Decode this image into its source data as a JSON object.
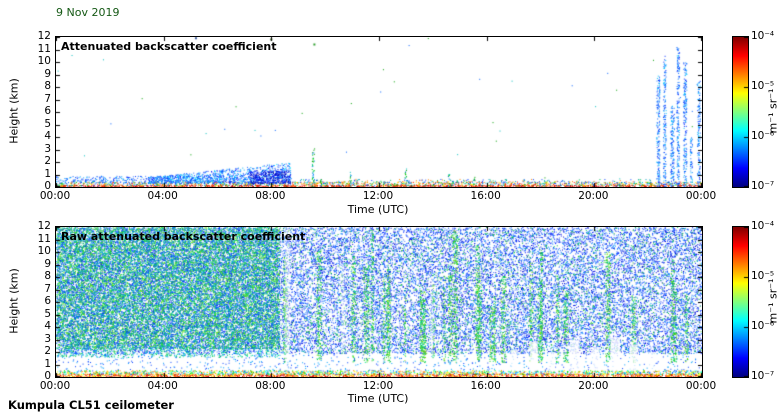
{
  "page": {
    "date_label": "9 Nov 2019",
    "date_color": "#155915",
    "footer_label": "Kumpula CL51 ceilometer",
    "background": "#ffffff"
  },
  "colorbar": {
    "ticks": [
      "10⁻⁴",
      "10⁻⁵",
      "10⁻⁶",
      "10⁻⁷"
    ],
    "unit_label": "m⁻¹ sr⁻¹",
    "colormap": "jet",
    "range": [
      "10⁻⁷",
      "10⁻⁴"
    ],
    "gradient_bottom_to_top": [
      [
        0.0,
        "#00007f"
      ],
      [
        0.125,
        "#0000ff"
      ],
      [
        0.25,
        "#007fff"
      ],
      [
        0.375,
        "#00ffff"
      ],
      [
        0.5,
        "#7fff7f"
      ],
      [
        0.625,
        "#ffff00"
      ],
      [
        0.75,
        "#ff7f00"
      ],
      [
        0.875,
        "#ff0000"
      ],
      [
        1.0,
        "#7f0000"
      ]
    ]
  },
  "chart_data": [
    {
      "type": "heatmap",
      "title": "Attenuated backscatter coefficient",
      "xlabel": "Time (UTC)",
      "ylabel": "Height (km)",
      "x_range_hours": [
        0,
        24
      ],
      "y_range_km": [
        0,
        12
      ],
      "x_ticks": [
        0,
        4,
        8,
        12,
        16,
        20,
        24
      ],
      "x_tick_labels": [
        "00:00",
        "04:00",
        "08:00",
        "12:00",
        "16:00",
        "20:00",
        "00:00"
      ],
      "y_ticks": [
        0,
        1,
        2,
        3,
        4,
        5,
        6,
        7,
        8,
        9,
        10,
        11,
        12
      ],
      "colorbar_range": [
        "10⁻⁷",
        "10⁻⁴"
      ],
      "seed": 7,
      "features": {
        "regions": [
          {
            "type": "speckle",
            "name": "surface-red-line",
            "x": [
              0,
              24
            ],
            "y": [
              0,
              0.18
            ],
            "density": 0.85,
            "colors": [
              "#cc0000",
              "#ff2000",
              "#ff6000",
              "#990000"
            ]
          },
          {
            "type": "speckle",
            "name": "surface-mixed-layer",
            "x": [
              0,
              24
            ],
            "y": [
              0.12,
              0.45
            ],
            "density": 0.5,
            "colors": [
              "#ff8000",
              "#ffff00",
              "#00c000",
              "#00d0d0",
              "#0040ff",
              "#ff2000"
            ]
          },
          {
            "type": "speckle",
            "name": "morning-low-aerosol",
            "x": [
              0,
              8.8
            ],
            "y": [
              0.35,
              0.9
            ],
            "density": 0.3,
            "colors": [
              "#0030ff",
              "#0060ff",
              "#00a0ff",
              "#4080ff"
            ]
          },
          {
            "type": "speckle",
            "name": "daytime-low-sparse",
            "x": [
              8.8,
              22.2
            ],
            "y": [
              0.3,
              0.65
            ],
            "density": 0.12,
            "colors": [
              "#0040ff",
              "#00a0c0",
              "#00c060",
              "#ff8000"
            ]
          },
          {
            "type": "ramp",
            "name": "morning-aerosol-plume",
            "x": [
              3.4,
              8.7
            ],
            "y_base": 0.3,
            "top_start": 0.8,
            "top_end": 2.0,
            "density": 0.45,
            "colors": [
              "#0020ff",
              "#0050ff",
              "#2070ff",
              "#00b0ff",
              "#00e0ff"
            ]
          },
          {
            "type": "speckle",
            "name": "dense-plume-core",
            "x": [
              7.2,
              8.7
            ],
            "y": [
              0.3,
              1.35
            ],
            "density": 0.7,
            "colors": [
              "#0000cc",
              "#0020ff",
              "#000099",
              "#2040ff"
            ]
          },
          {
            "type": "columns",
            "name": "evening-precipitation-columns",
            "density": 0.5,
            "colors": [
              "#0030ff",
              "#0060ff",
              "#3090ff",
              "#00c0ff"
            ],
            "items": [
              {
                "x": 22.3,
                "w": 0.12,
                "h": 9.0
              },
              {
                "x": 22.55,
                "w": 0.1,
                "h": 10.5
              },
              {
                "x": 22.82,
                "w": 0.14,
                "h": 6.5
              },
              {
                "x": 23.05,
                "w": 0.1,
                "h": 11.2
              },
              {
                "x": 23.3,
                "w": 0.12,
                "h": 10.0
              },
              {
                "x": 23.55,
                "w": 0.08,
                "h": 4.0
              },
              {
                "x": 23.82,
                "w": 0.1,
                "h": 8.5
              }
            ]
          },
          {
            "type": "columns",
            "name": "isolated-plumes",
            "density": 0.45,
            "colors": [
              "#00a000",
              "#00d000",
              "#0080ff",
              "#00c0c0"
            ],
            "items": [
              {
                "x": 9.5,
                "w": 0.09,
                "h": 3.2
              },
              {
                "x": 9.8,
                "w": 0.05,
                "h": 1.2
              },
              {
                "x": 10.9,
                "w": 0.06,
                "h": 1.3
              },
              {
                "x": 12.95,
                "w": 0.06,
                "h": 1.6
              },
              {
                "x": 14.55,
                "w": 0.06,
                "h": 1.1
              },
              {
                "x": 15.5,
                "w": 0.05,
                "h": 0.9
              },
              {
                "x": 18.1,
                "w": 0.05,
                "h": 0.8
              },
              {
                "x": 20.9,
                "w": 0.05,
                "h": 0.8
              }
            ]
          },
          {
            "type": "speckle",
            "name": "sparse-stray-dots",
            "x": [
              0,
              24
            ],
            "y": [
              1,
              12
            ],
            "density": 0.0004,
            "colors": [
              "#00a000",
              "#0060ff",
              "#00c0c0"
            ]
          },
          {
            "type": "specks",
            "name": "top-edge-specks",
            "points": [
              {
                "x": 8.0,
                "y": 11.8,
                "color": "#205000"
              },
              {
                "x": 9.6,
                "y": 11.4,
                "color": "#30a030"
              },
              {
                "x": 5.2,
                "y": 11.9,
                "color": "#4060a0"
              }
            ]
          }
        ]
      }
    },
    {
      "type": "heatmap",
      "title": "Raw attenuated backscatter coefficient",
      "xlabel": "Time (UTC)",
      "ylabel": "Height (km)",
      "x_range_hours": [
        0,
        24
      ],
      "y_range_km": [
        0,
        12
      ],
      "x_ticks": [
        0,
        4,
        8,
        12,
        16,
        20,
        24
      ],
      "x_tick_labels": [
        "00:00",
        "04:00",
        "08:00",
        "12:00",
        "16:00",
        "20:00",
        "00:00"
      ],
      "y_ticks": [
        0,
        1,
        2,
        3,
        4,
        5,
        6,
        7,
        8,
        9,
        10,
        11,
        12
      ],
      "colorbar_range": [
        "10⁻⁷",
        "10⁻⁴"
      ],
      "seed": 13,
      "features": {
        "regions": [
          {
            "type": "speckle",
            "name": "background-blue-noise",
            "x": [
              0,
              24
            ],
            "y": [
              1.9,
              12
            ],
            "density": 0.33,
            "colors": [
              "#0018ff",
              "#0040ff",
              "#2468ff",
              "#0090ff",
              "#4b7bff",
              "#0008d0"
            ]
          },
          {
            "type": "speckle",
            "name": "background-green-sparse",
            "x": [
              8.3,
              24
            ],
            "y": [
              1.9,
              12
            ],
            "density": 0.05,
            "colors": [
              "#00b050",
              "#00d060",
              "#30c030"
            ]
          },
          {
            "type": "speckle",
            "name": "morning-dense-green",
            "x": [
              0,
              8.3
            ],
            "y": [
              2.3,
              12
            ],
            "density": 0.5,
            "colors": [
              "#00c040",
              "#00e040",
              "#40e020",
              "#20c080",
              "#60e000",
              "#00b0a0"
            ]
          },
          {
            "type": "speckle",
            "name": "morning-extra-blue",
            "x": [
              0,
              8.3
            ],
            "y": [
              2.3,
              12
            ],
            "density": 0.22,
            "colors": [
              "#0040ff",
              "#00a0e0"
            ]
          },
          {
            "type": "speckle",
            "name": "morning-low-green",
            "x": [
              0,
              8.3
            ],
            "y": [
              1.6,
              2.4
            ],
            "density": 0.3,
            "colors": [
              "#00c040",
              "#00e0a0",
              "#0080ff"
            ]
          },
          {
            "type": "streaks",
            "name": "daytime-green-streaks",
            "x_range": [
              8.35,
              23.9
            ],
            "count": 30,
            "width": [
              0.06,
              0.22
            ],
            "y": [
              1.2,
              12
            ],
            "height": [
              5,
              11.8
            ],
            "density": 0.33,
            "colors": [
              "#00c040",
              "#20d020",
              "#00e080",
              "#80e000"
            ]
          },
          {
            "type": "speckle",
            "name": "clear-band",
            "x": [
              0,
              24
            ],
            "y": [
              0.5,
              1.9
            ],
            "density": 0.05,
            "colors": [
              "#0040ff",
              "#00a0ff"
            ]
          },
          {
            "type": "speckle",
            "name": "surface-bright-line",
            "x": [
              0,
              24
            ],
            "y": [
              0,
              0.28
            ],
            "density": 0.9,
            "colors": [
              "#ff0000",
              "#ff8000",
              "#ffff00",
              "#c00000"
            ]
          },
          {
            "type": "speckle",
            "name": "surface-mixed-layer",
            "x": [
              0,
              24
            ],
            "y": [
              0.22,
              0.55
            ],
            "density": 0.55,
            "colors": [
              "#ffff00",
              "#00e000",
              "#00ffff",
              "#0060ff",
              "#ff8000"
            ]
          },
          {
            "type": "clear_columns",
            "name": "evening-white-columns",
            "alpha": 0.75,
            "items": [
              {
                "x": 16.9,
                "w": 0.25,
                "h": 2.2
              },
              {
                "x": 17.6,
                "w": 0.3,
                "h": 2.8
              },
              {
                "x": 18.3,
                "w": 0.25,
                "h": 2.0
              },
              {
                "x": 19.1,
                "w": 0.35,
                "h": 3.0
              },
              {
                "x": 19.9,
                "w": 0.3,
                "h": 2.4
              },
              {
                "x": 20.6,
                "w": 0.35,
                "h": 3.2
              },
              {
                "x": 21.3,
                "w": 0.3,
                "h": 2.6
              },
              {
                "x": 22.0,
                "w": 0.25,
                "h": 2.0
              }
            ]
          },
          {
            "type": "clear_columns",
            "name": "faint-clear-gaps",
            "alpha": 0.4,
            "items": [
              {
                "x": 8.5,
                "w": 0.18,
                "h": 12,
                "y0": 0.6
              },
              {
                "x": 10.6,
                "w": 0.12,
                "h": 9,
                "y0": 0.6
              },
              {
                "x": 13.9,
                "w": 0.12,
                "h": 8,
                "y0": 0.6
              }
            ]
          }
        ]
      }
    }
  ]
}
